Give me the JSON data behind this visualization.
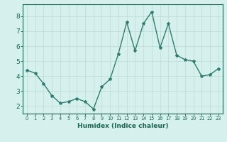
{
  "x": [
    0,
    1,
    2,
    3,
    4,
    5,
    6,
    7,
    8,
    9,
    10,
    11,
    12,
    13,
    14,
    15,
    16,
    17,
    18,
    19,
    20,
    21,
    22,
    23
  ],
  "y": [
    4.4,
    4.2,
    3.5,
    2.7,
    2.2,
    2.3,
    2.5,
    2.3,
    1.8,
    3.3,
    3.8,
    5.5,
    7.6,
    5.7,
    7.5,
    8.3,
    5.9,
    7.5,
    5.4,
    5.1,
    5.0,
    4.0,
    4.1,
    4.5
  ],
  "line_color": "#2e7d6e",
  "marker": "*",
  "marker_size": 3,
  "background_color": "#d6f0ee",
  "grid_color": "#c0deda",
  "xlabel": "Humidex (Indice chaleur)",
  "ylim": [
    1.5,
    8.8
  ],
  "xlim": [
    -0.5,
    23.5
  ],
  "yticks": [
    2,
    3,
    4,
    5,
    6,
    7,
    8
  ],
  "xticks": [
    0,
    1,
    2,
    3,
    4,
    5,
    6,
    7,
    8,
    9,
    10,
    11,
    12,
    13,
    14,
    15,
    16,
    17,
    18,
    19,
    20,
    21,
    22,
    23
  ],
  "xtick_labels": [
    "0",
    "1",
    "2",
    "3",
    "4",
    "5",
    "6",
    "7",
    "8",
    "9",
    "10",
    "11",
    "12",
    "13",
    "14",
    "15",
    "16",
    "17",
    "18",
    "19",
    "20",
    "21",
    "22",
    "23"
  ],
  "line_width": 1.0,
  "font_color": "#1a6655",
  "spine_color": "#1a6655",
  "tick_color": "#1a6655",
  "xlabel_fontsize": 6.5,
  "xtick_fontsize": 4.8,
  "ytick_fontsize": 6.5
}
